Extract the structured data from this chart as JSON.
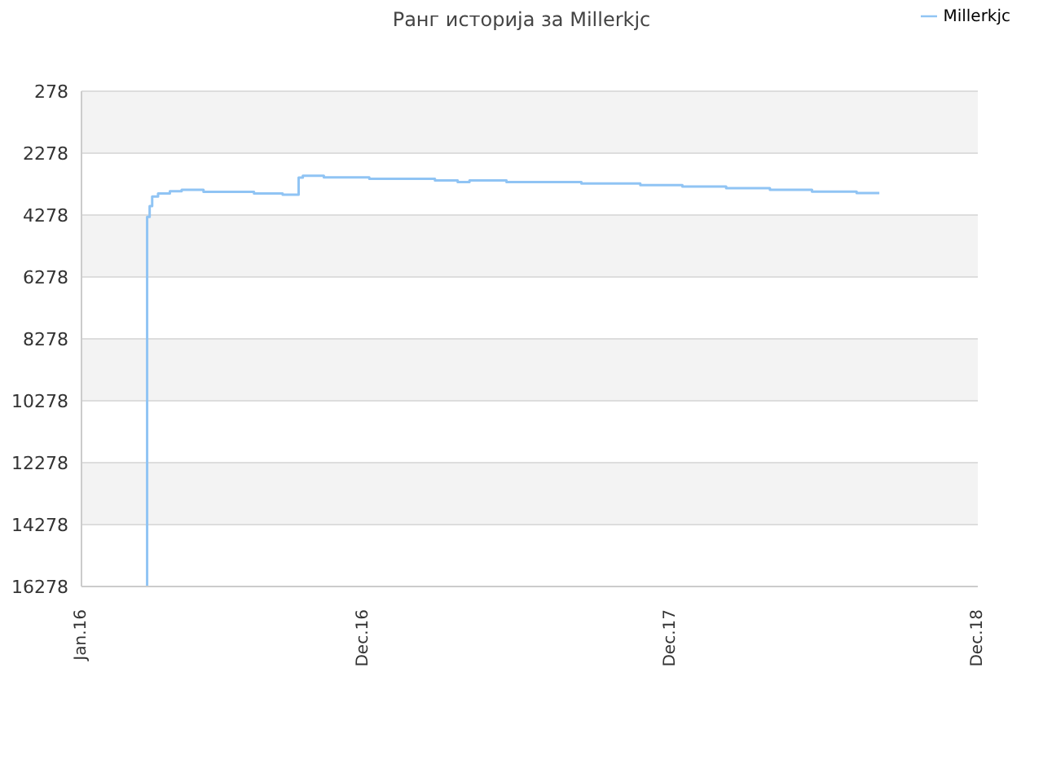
{
  "chart_data": {
    "type": "step",
    "title": "Ранг историја за Millerkjc",
    "x": [
      "2016-03-18",
      "2016-03-19",
      "2016-03-22",
      "2016-03-25",
      "2016-04-01",
      "2016-04-15",
      "2016-04-29",
      "2016-05-25",
      "2016-07-24",
      "2016-08-27",
      "2016-09-15",
      "2016-09-20",
      "2016-10-15",
      "2016-12-08",
      "2017-02-24",
      "2017-03-23",
      "2017-04-06",
      "2017-05-20",
      "2017-08-17",
      "2017-10-26",
      "2017-12-15",
      "2018-02-05",
      "2018-03-29",
      "2018-05-18",
      "2018-07-10",
      "2018-08-06"
    ],
    "series": [
      {
        "name": "Millerkjc",
        "color": "#90c4f4",
        "values": [
          16278,
          4340,
          3990,
          3680,
          3580,
          3510,
          3460,
          3530,
          3580,
          3620,
          3070,
          3010,
          3060,
          3110,
          3160,
          3210,
          3160,
          3210,
          3260,
          3310,
          3360,
          3410,
          3460,
          3520,
          3570,
          3570
        ]
      }
    ],
    "xlim": [
      "2016-01-01",
      "2018-12-01"
    ],
    "xticks": [
      {
        "value": "2016-01-01",
        "label": "Jan.16"
      },
      {
        "value": "2016-12-01",
        "label": "Dec.16"
      },
      {
        "value": "2017-12-01",
        "label": "Dec.17"
      },
      {
        "value": "2018-12-01",
        "label": "Dec.18"
      }
    ],
    "ylim": [
      16278,
      278
    ],
    "yticks": [
      278,
      2278,
      4278,
      6278,
      8278,
      10278,
      12278,
      14278,
      16278
    ],
    "grid": "y",
    "legend": "top right",
    "marker": "none",
    "line_style": "solid"
  }
}
